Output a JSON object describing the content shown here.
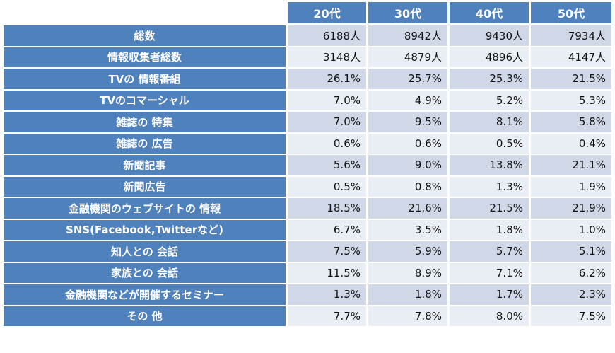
{
  "table": {
    "columns": [
      "20代",
      "30代",
      "40代",
      "50代"
    ],
    "rows": [
      {
        "label": "総数",
        "cells": [
          "6188人",
          "8942人",
          "9430人",
          "7934人"
        ]
      },
      {
        "label": "情報収集者総数",
        "cells": [
          "3148人",
          "4879人",
          "4896人",
          "4147人"
        ]
      },
      {
        "label": "TVの 情報番組",
        "cells": [
          "26.1%",
          "25.7%",
          "25.3%",
          "21.5%"
        ]
      },
      {
        "label": "TVのコマーシャル",
        "cells": [
          "7.0%",
          "4.9%",
          "5.2%",
          "5.3%"
        ]
      },
      {
        "label": "雑誌の 特集",
        "cells": [
          "7.0%",
          "9.5%",
          "8.1%",
          "5.8%"
        ]
      },
      {
        "label": "雑誌の 広告",
        "cells": [
          "0.6%",
          "0.6%",
          "0.5%",
          "0.4%"
        ]
      },
      {
        "label": "新聞記事",
        "cells": [
          "5.6%",
          "9.0%",
          "13.8%",
          "21.1%"
        ]
      },
      {
        "label": "新聞広告",
        "cells": [
          "0.5%",
          "0.8%",
          "1.3%",
          "1.9%"
        ]
      },
      {
        "label": "金融機関のウェブサイトの 情報",
        "cells": [
          "18.5%",
          "21.6%",
          "21.5%",
          "21.9%"
        ]
      },
      {
        "label": "SNS(Facebook,Twitterなど)",
        "cells": [
          "6.7%",
          "3.5%",
          "1.8%",
          "1.0%"
        ]
      },
      {
        "label": "知人との 会話",
        "cells": [
          "7.5%",
          "5.9%",
          "5.7%",
          "5.1%"
        ]
      },
      {
        "label": "家族との 会話",
        "cells": [
          "11.5%",
          "8.9%",
          "7.1%",
          "6.2%"
        ]
      },
      {
        "label": "金融機関などが開催するセミナー",
        "cells": [
          "1.3%",
          "1.8%",
          "1.7%",
          "2.3%"
        ]
      },
      {
        "label": "その 他",
        "cells": [
          "7.7%",
          "7.8%",
          "8.0%",
          "7.5%"
        ]
      }
    ]
  }
}
